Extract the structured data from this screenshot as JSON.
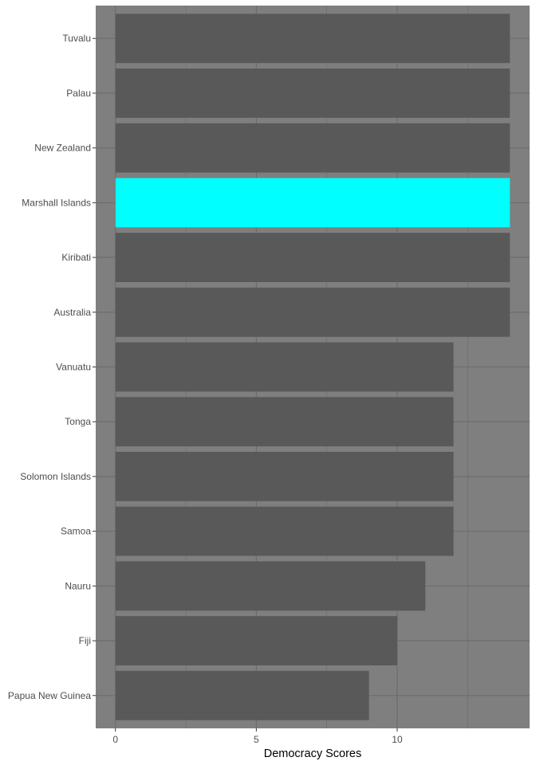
{
  "chart_data": {
    "type": "bar",
    "orientation": "horizontal",
    "title": "",
    "xlabel": "Democracy Scores",
    "ylabel": "",
    "categories": [
      "Tuvalu",
      "Palau",
      "New Zealand",
      "Marshall Islands",
      "Kiribati",
      "Australia",
      "Vanuatu",
      "Tonga",
      "Solomon Islands",
      "Samoa",
      "Nauru",
      "Fiji",
      "Papua New Guinea"
    ],
    "values": [
      14,
      14,
      14,
      14,
      14,
      14,
      12,
      12,
      12,
      12,
      11,
      10,
      9
    ],
    "highlight_index": 3,
    "xlim": [
      -0.7,
      14.7
    ],
    "xticks": [
      0,
      5,
      10
    ],
    "xtick_labels": [
      "0",
      "5",
      "10"
    ],
    "grid": true,
    "legend": "none",
    "colors": {
      "panel_background": "#7f7f7f",
      "gridline": "#6b6b6b",
      "bar": "#595959",
      "highlight_bar": "#00ffff",
      "tick_label": "#4d4d4d",
      "axis_title": "#000000"
    }
  }
}
